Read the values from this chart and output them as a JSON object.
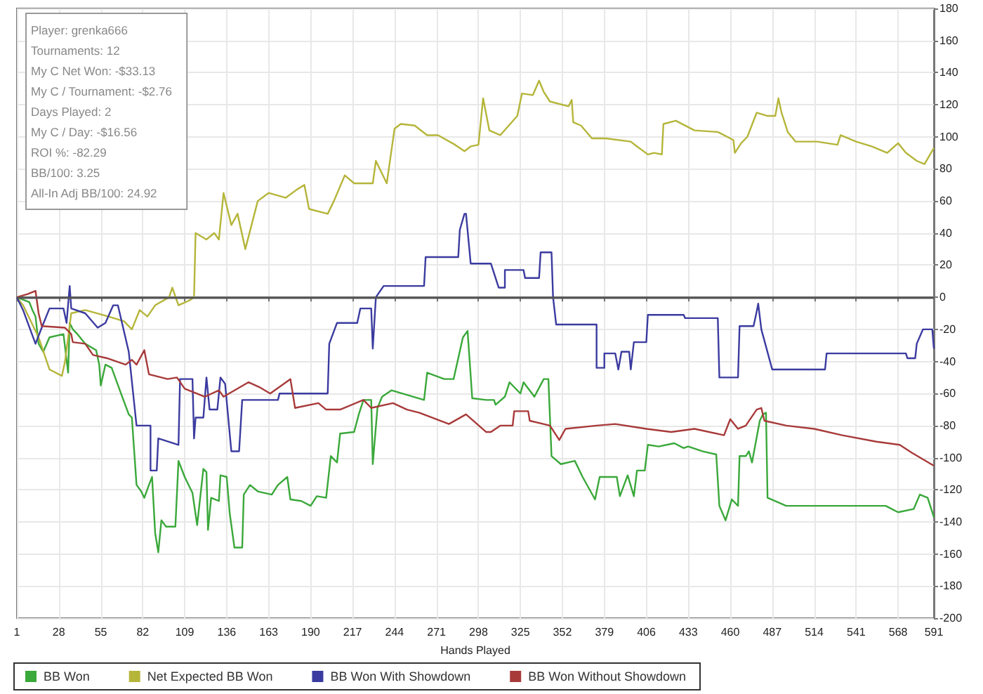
{
  "chart_data": {
    "type": "line",
    "xlabel": "Hands Played",
    "xlim": [
      1,
      591
    ],
    "xticks": [
      1,
      28,
      55,
      82,
      109,
      136,
      163,
      190,
      217,
      244,
      271,
      298,
      325,
      352,
      379,
      406,
      433,
      460,
      487,
      514,
      541,
      568,
      591
    ],
    "ylim": [
      -200,
      180
    ],
    "yticks": [
      -200,
      -180,
      -160,
      -140,
      -120,
      -100,
      -80,
      -60,
      -40,
      -20,
      0,
      20,
      40,
      60,
      80,
      100,
      120,
      140,
      160,
      180
    ],
    "grid": true,
    "legend": "bottom left",
    "marker": "none",
    "line_style": "solid",
    "ref_lines": [
      {
        "axis": "y",
        "value": 0,
        "color": "#555555"
      }
    ],
    "annotations": [
      "Player: grenka666\nTournaments: 12\nMy C Net Won: -$33.13\nMy C / Tournament: -$2.76\nDays Played: 2\nMy C / Day: -$16.56\nROI %: -82.29\nBB/100: 3.25\nAll-In Adj BB/100: 24.92"
    ],
    "series": [
      {
        "name": "BB Won",
        "color": "#3aa83a",
        "x": [
          1,
          9,
          11,
          13,
          15,
          18,
          22,
          31,
          34,
          35,
          37,
          40,
          45,
          52,
          54,
          55,
          58,
          62,
          68,
          73,
          75,
          78,
          81,
          83,
          86,
          88,
          90,
          92,
          94,
          97,
          103,
          105,
          109,
          114,
          117,
          121,
          123,
          124,
          126,
          131,
          132,
          136,
          138,
          141,
          146,
          147,
          151,
          156,
          165,
          169,
          175,
          177,
          184,
          190,
          194,
          200,
          203,
          207,
          209,
          218,
          221,
          224,
          229,
          230,
          233,
          236,
          242,
          263,
          265,
          276,
          282,
          288,
          291,
          294,
          303,
          308,
          309,
          315,
          318,
          325,
          327,
          334,
          340,
          343,
          345,
          351,
          360,
          365,
          373,
          376,
          387,
          389,
          394,
          398,
          400,
          405,
          407,
          414,
          424,
          430,
          433,
          442,
          451,
          453,
          457,
          461,
          465,
          466,
          470,
          472,
          474,
          479,
          481,
          483,
          484,
          496,
          560,
          568,
          578,
          582,
          587,
          591
        ],
        "values": [
          0,
          -3,
          -8,
          -12,
          -29,
          -34,
          -25,
          -23,
          -47,
          -16,
          -20,
          -23,
          -29,
          -33,
          -42,
          -55,
          -42,
          -44,
          -60,
          -73,
          -75,
          -117,
          -121,
          -125,
          -117,
          -112,
          -147,
          -159,
          -139,
          -143,
          -143,
          -102,
          -112,
          -122,
          -142,
          -107,
          -109,
          -145,
          -125,
          -127,
          -111,
          -112,
          -135,
          -156,
          -156,
          -123,
          -117,
          -121,
          -123,
          -117,
          -112,
          -126,
          -127,
          -130,
          -124,
          -125,
          -99,
          -103,
          -85,
          -84,
          -73,
          -64,
          -64,
          -104,
          -69,
          -62,
          -58,
          -64,
          -47,
          -51,
          -51,
          -25,
          -21,
          -63,
          -64,
          -64,
          -67,
          -62,
          -53,
          -60,
          -53,
          -62,
          -51,
          -51,
          -99,
          -104,
          -102,
          -112,
          -126,
          -112,
          -112,
          -124,
          -111,
          -124,
          -108,
          -108,
          -92,
          -93,
          -91,
          -94,
          -93,
          -96,
          -98,
          -130,
          -139,
          -126,
          -130,
          -99,
          -99,
          -96,
          -103,
          -77,
          -73,
          -72,
          -125,
          -130,
          -130,
          -134,
          -132,
          -123,
          -125,
          -137
        ]
      },
      {
        "name": "Net Expected BB Won",
        "color": "#b5b53a",
        "x": [
          1,
          5,
          15,
          22,
          30,
          32,
          36,
          45,
          60,
          70,
          75,
          80,
          85,
          90,
          99,
          101,
          105,
          112,
          115,
          116,
          123,
          128,
          131,
          134,
          139,
          143,
          148,
          156,
          163,
          174,
          181,
          186,
          189,
          201,
          205,
          212,
          218,
          230,
          232,
          239,
          244,
          248,
          257,
          265,
          272,
          283,
          289,
          293,
          298,
          301,
          305,
          312,
          323,
          326,
          333,
          337,
          340,
          344,
          356,
          358,
          359,
          364,
          371,
          380,
          396,
          400,
          407,
          411,
          416,
          417,
          425,
          437,
          452,
          462,
          463,
          467,
          471,
          477,
          484,
          489,
          491,
          493,
          497,
          502,
          516,
          529,
          531,
          541,
          551,
          561,
          568,
          573,
          580,
          585,
          588,
          591
        ],
        "values": [
          0,
          -5,
          -25,
          -45,
          -49,
          -40,
          -10,
          -8,
          -12,
          -15,
          -20,
          -8,
          -12,
          -5,
          0,
          6,
          -5,
          -2,
          0,
          40,
          36,
          40,
          36,
          65,
          45,
          52,
          30,
          60,
          65,
          62,
          67,
          70,
          55,
          52,
          60,
          76,
          71,
          71,
          85,
          71,
          105,
          108,
          107,
          101,
          101,
          95,
          91,
          94,
          95,
          124,
          104,
          101,
          113,
          127,
          126,
          135,
          128,
          122,
          119,
          123,
          109,
          107,
          99,
          99,
          97,
          94,
          89,
          90,
          89,
          108,
          110,
          104,
          103,
          98,
          90,
          96,
          100,
          115,
          113,
          113,
          124,
          115,
          103,
          97,
          97,
          95,
          101,
          97,
          94,
          90,
          96,
          90,
          85,
          83,
          88,
          93
        ]
      },
      {
        "name": "BB Won With Showdown",
        "color": "#3b3ba0",
        "x": [
          1,
          5,
          13,
          17,
          22,
          31,
          33,
          35,
          36,
          45,
          53,
          58,
          63,
          66,
          73,
          78,
          87,
          87,
          91,
          92,
          105,
          106,
          114,
          115,
          116,
          121,
          123,
          125,
          130,
          132,
          135,
          139,
          144,
          146,
          169,
          170,
          201,
          202,
          207,
          220,
          222,
          229,
          230,
          232,
          237,
          263,
          264,
          285,
          286,
          289,
          290,
          293,
          306,
          311,
          315,
          315,
          327,
          328,
          337,
          338,
          345,
          346,
          348,
          374,
          374,
          379,
          379,
          386,
          388,
          390,
          395,
          396,
          398,
          406,
          407,
          430,
          431,
          452,
          453,
          465,
          466,
          475,
          477,
          478,
          480,
          487,
          521,
          522,
          573,
          574,
          579,
          580,
          584,
          590,
          591
        ],
        "values": [
          0,
          -8,
          -29,
          -19,
          -7,
          -7,
          -16,
          7,
          -7,
          -10,
          -19,
          -16,
          -5,
          -5,
          -34,
          -80,
          -80,
          -108,
          -108,
          -88,
          -92,
          -51,
          -51,
          -88,
          -75,
          -75,
          -50,
          -70,
          -70,
          -50,
          -54,
          -96,
          -96,
          -64,
          -64,
          -60,
          -60,
          -29,
          -16,
          -16,
          -7,
          -7,
          -32,
          0,
          7,
          7,
          25,
          25,
          42,
          52,
          52,
          21,
          21,
          6,
          6,
          17,
          17,
          12,
          12,
          28,
          28,
          0,
          -17,
          -17,
          -44,
          -44,
          -35,
          -35,
          -45,
          -34,
          -34,
          -45,
          -28,
          -28,
          -11,
          -11,
          -13,
          -13,
          -50,
          -50,
          -18,
          -18,
          -9,
          -4,
          -20,
          -45,
          -45,
          -35,
          -35,
          -38,
          -38,
          -29,
          -20,
          -20,
          -32
        ]
      },
      {
        "name": "BB Won Without Showdown",
        "color": "#a83a3a",
        "x": [
          1,
          8,
          13,
          15,
          17,
          32,
          36,
          37,
          45,
          50,
          59,
          71,
          75,
          78,
          83,
          86,
          98,
          104,
          109,
          122,
          131,
          134,
          150,
          157,
          164,
          177,
          180,
          195,
          200,
          209,
          224,
          229,
          243,
          252,
          260,
          279,
          290,
          303,
          306,
          312,
          320,
          321,
          330,
          331,
          344,
          350,
          354,
          374,
          386,
          406,
          422,
          437,
          456,
          460,
          465,
          470,
          477,
          480,
          482,
          496,
          514,
          532,
          554,
          569,
          577,
          591
        ],
        "values": [
          0,
          2,
          4,
          -10,
          -18,
          -19,
          -23,
          -28,
          -29,
          -36,
          -38,
          -42,
          -39,
          -42,
          -33,
          -48,
          -51,
          -50,
          -57,
          -62,
          -58,
          -62,
          -53,
          -56,
          -60,
          -51,
          -69,
          -66,
          -70,
          -70,
          -64,
          -69,
          -66,
          -70,
          -72,
          -79,
          -73,
          -84,
          -84,
          -80,
          -80,
          -71,
          -71,
          -77,
          -80,
          -89,
          -82,
          -80,
          -79,
          -82,
          -84,
          -82,
          -86,
          -76,
          -82,
          -80,
          -70,
          -69,
          -77,
          -80,
          -82,
          -86,
          -90,
          -92,
          -97,
          -105
        ]
      }
    ]
  }
}
